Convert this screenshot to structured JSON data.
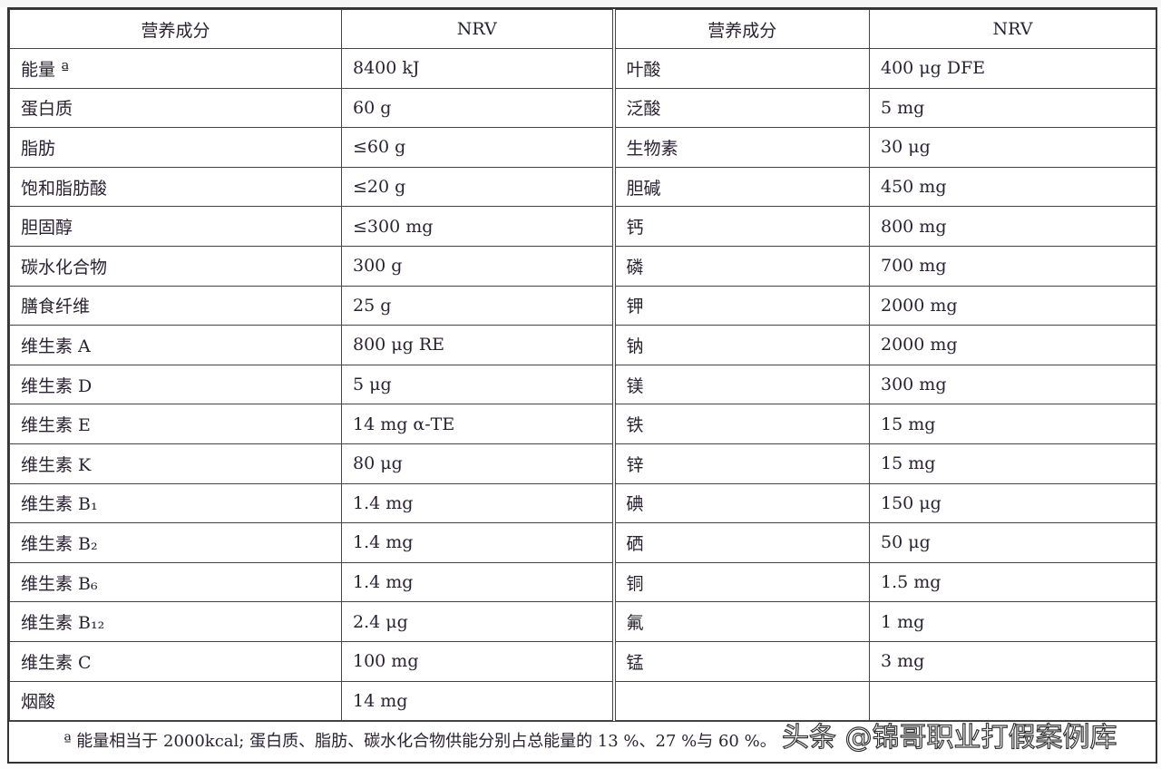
{
  "table": {
    "headers": [
      "营养成分",
      "NRV",
      "营养成分",
      "NRV"
    ],
    "rows": [
      [
        "能量 ª",
        "8400 kJ",
        "叶酸",
        "400 μg DFE"
      ],
      [
        "蛋白质",
        "60 g",
        "泛酸",
        "5 mg"
      ],
      [
        "脂肪",
        "≤60 g",
        "生物素",
        "30 μg"
      ],
      [
        "饱和脂肪酸",
        "≤20 g",
        "胆碱",
        "450 mg"
      ],
      [
        "胆固醇",
        "≤300 mg",
        "钙",
        "800 mg"
      ],
      [
        "碳水化合物",
        "300 g",
        "磷",
        "700 mg"
      ],
      [
        "膳食纤维",
        "25 g",
        "钾",
        "2000 mg"
      ],
      [
        "维生素 A",
        "800 μg RE",
        "钠",
        "2000 mg"
      ],
      [
        "维生素 D",
        "5 μg",
        "镁",
        "300 mg"
      ],
      [
        "维生素 E",
        "14 mg α-TE",
        "铁",
        "15 mg"
      ],
      [
        "维生素 K",
        "80 μg",
        "锌",
        "15 mg"
      ],
      [
        "维生素 B₁",
        "1.4 mg",
        "碘",
        "150 μg"
      ],
      [
        "维生素 B₂",
        "1.4 mg",
        "硒",
        "50 μg"
      ],
      [
        "维生素 B₆",
        "1.4 mg",
        "铜",
        "1.5 mg"
      ],
      [
        "维生素 B₁₂",
        "2.4 μg",
        "氟",
        "1 mg"
      ],
      [
        "维生素 C",
        "100 mg",
        "锰",
        "3 mg"
      ],
      [
        "烟酸",
        "14 mg",
        "",
        ""
      ]
    ],
    "footnote": "ª 能量相当于 2000kcal; 蛋白质、脂肪、碳水化合物供能分别占总能量的 13 %、27 %与 60 %。"
  },
  "watermark": "头条 @锦哥职业打假案例库"
}
